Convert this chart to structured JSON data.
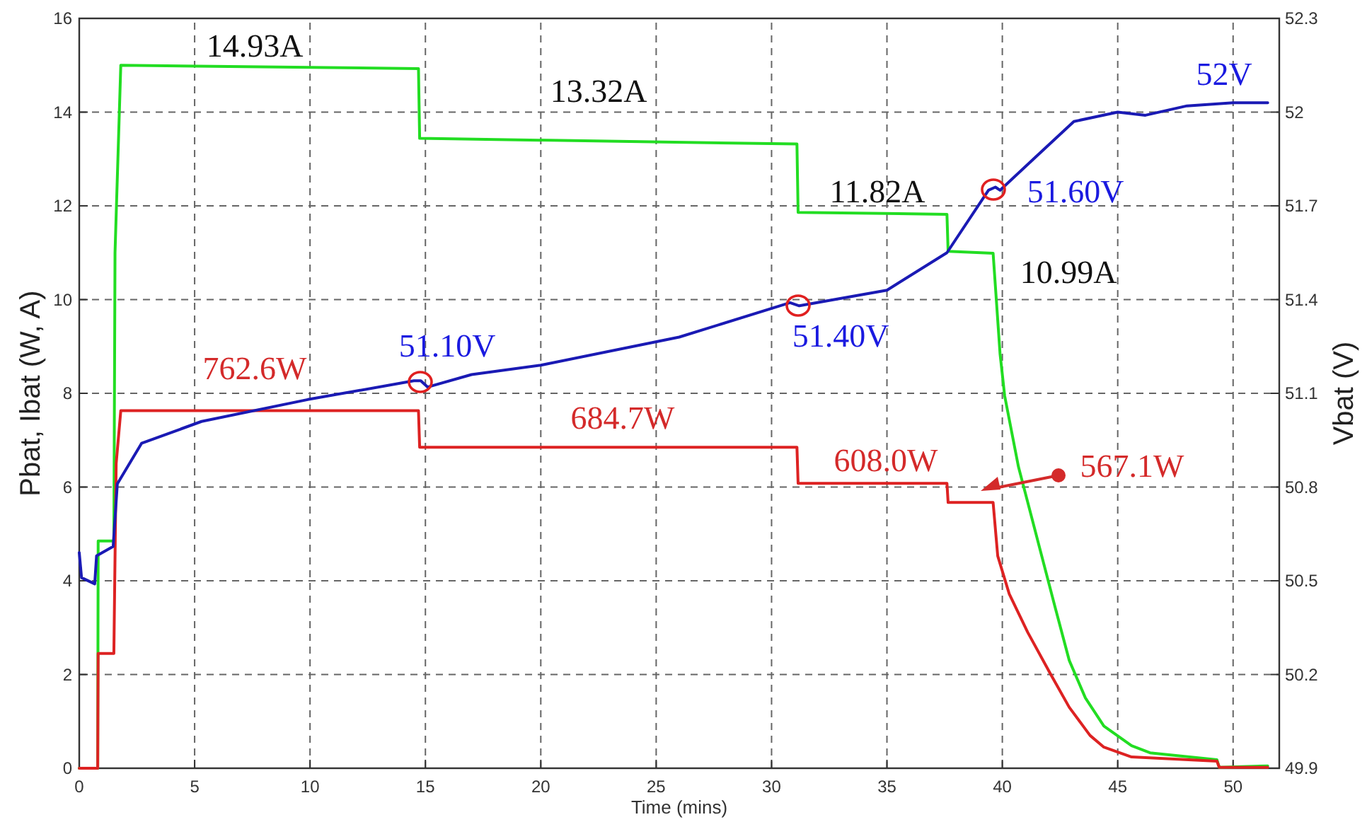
{
  "chart_data": {
    "type": "line",
    "xlabel": "Time (mins)",
    "ylabel": "Pbat, Ibat (W, A)",
    "y2label": "Vbat (V)",
    "xlim": [
      0,
      52
    ],
    "xticks": [
      0,
      5,
      10,
      15,
      20,
      25,
      30,
      35,
      40,
      45,
      50
    ],
    "ylim": [
      0,
      16
    ],
    "yticks": [
      0,
      2,
      4,
      6,
      8,
      10,
      12,
      14,
      16
    ],
    "y2lim": [
      49.9,
      52.3
    ],
    "y2ticks": [
      49.9,
      50.2,
      50.5,
      50.8,
      51.1,
      51.4,
      51.7,
      52,
      52.3
    ],
    "grid": true,
    "marker": "none",
    "line_style": "solid",
    "series": [
      {
        "color": "#22dd22",
        "x": [
          0,
          0.8,
          0.82,
          1.5,
          1.55,
          1.8,
          14.7,
          14.75,
          31.1,
          31.15,
          37.6,
          37.65,
          39.6,
          39.9,
          40.1,
          40.7,
          41.5,
          42.3,
          42.9,
          43.6,
          44.4,
          45.6,
          46.4,
          49.3,
          49.4,
          51.5
        ],
        "values": [
          0,
          0,
          4.85,
          4.85,
          11,
          15.0,
          14.93,
          13.44,
          13.32,
          11.86,
          11.82,
          11.03,
          10.99,
          8.85,
          7.95,
          6.43,
          4.92,
          3.41,
          2.3,
          1.5,
          0.9,
          0.48,
          0.33,
          0.18,
          0.02,
          0.05
        ]
      },
      {
        "color": "#dd2222",
        "x": [
          0,
          0.8,
          0.82,
          1.5,
          1.6,
          1.8,
          14.7,
          14.75,
          31.1,
          31.15,
          37.6,
          37.65,
          39.6,
          39.8,
          40.3,
          41.1,
          42.1,
          42.9,
          43.8,
          44.4,
          45.6,
          49.3,
          49.4,
          51.5
        ],
        "values": [
          0,
          0,
          2.45,
          2.45,
          6.5,
          7.63,
          7.63,
          6.85,
          6.85,
          6.08,
          6.08,
          5.67,
          5.67,
          4.53,
          3.72,
          2.9,
          2.0,
          1.3,
          0.7,
          0.45,
          0.24,
          0.15,
          0.02,
          0.02
        ]
      },
      {
        "color": "#1a1ab4",
        "axis": "y2",
        "x": [
          0,
          0.1,
          0.67,
          0.75,
          1.47,
          1.65,
          2.7,
          5.3,
          9.9,
          14.5,
          14.8,
          15.1,
          17,
          20,
          26,
          30.8,
          31.2,
          35,
          37.6,
          39.4,
          39.7,
          39.9,
          41.5,
          43.1,
          45,
          46.2,
          48,
          50,
          51.5
        ],
        "values": [
          50.59,
          50.51,
          50.49,
          50.58,
          50.61,
          50.81,
          50.94,
          51.01,
          51.08,
          51.14,
          51.14,
          51.12,
          51.16,
          51.19,
          51.28,
          51.39,
          51.38,
          51.43,
          51.55,
          51.75,
          51.76,
          51.75,
          51.86,
          51.97,
          52.0,
          51.99,
          52.02,
          52.03,
          52.03
        ]
      }
    ],
    "annotations": [
      "14.93A",
      "13.32A",
      "11.82A",
      "10.99A",
      "52V",
      "51.60V",
      "51.40V",
      "51.10V",
      "762.6W",
      "684.7W",
      "608.0W",
      "567.1W"
    ]
  }
}
